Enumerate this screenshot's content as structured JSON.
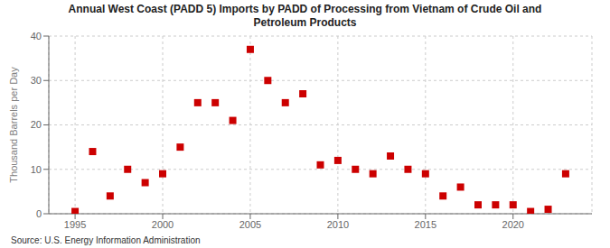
{
  "chart_data": {
    "type": "scatter",
    "title": "Annual West Coast (PADD 5) Imports by PADD of Processing from Vietnam of Crude Oil and\nPetroleum Products",
    "y_label": "Thousand Barrels per Day",
    "annotations": [
      "Source: U.S. Energy Information Administration"
    ],
    "x": [
      1995,
      1996,
      1997,
      1998,
      1999,
      2000,
      2001,
      2002,
      2003,
      2004,
      2005,
      2006,
      2007,
      2008,
      2009,
      2010,
      2011,
      2012,
      2013,
      2014,
      2015,
      2016,
      2017,
      2018,
      2019,
      2020,
      2021,
      2022,
      2023
    ],
    "values": [
      0.5,
      14,
      4,
      10,
      7,
      9,
      15,
      25,
      25,
      21,
      37,
      30,
      25,
      27,
      11,
      12,
      10,
      9,
      13,
      10,
      9,
      4,
      6,
      2,
      2,
      2,
      0.5,
      1,
      9
    ],
    "color": "#cc0000",
    "marker": "square",
    "xlim": [
      1993.5,
      2024.5
    ],
    "ylim": [
      0,
      40
    ],
    "xticks": [
      1995,
      2000,
      2005,
      2010,
      2015,
      2020
    ],
    "yticks": [
      0,
      10,
      20,
      30,
      40
    ],
    "grid": true
  }
}
